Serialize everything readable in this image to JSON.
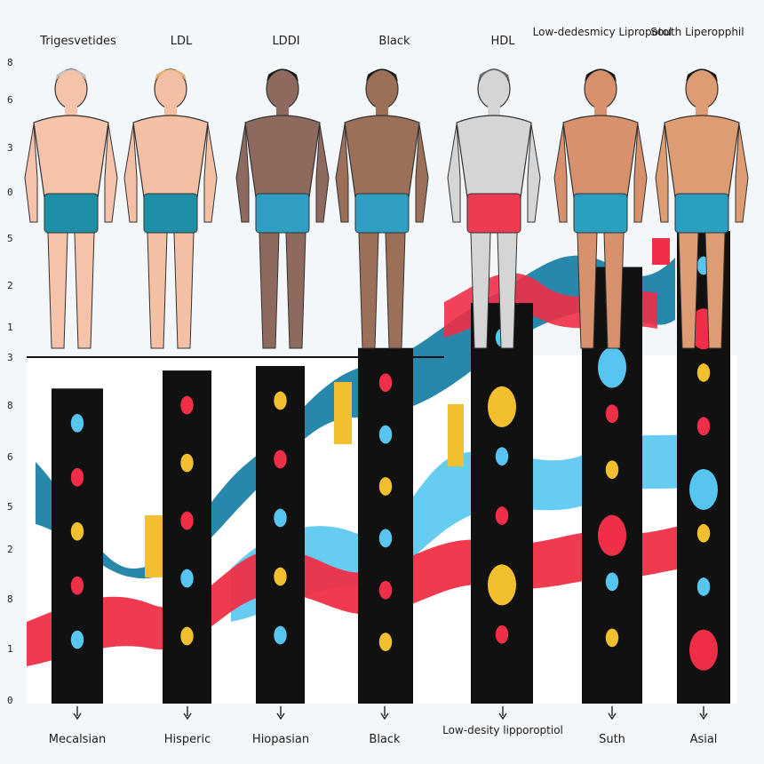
{
  "chart_data": {
    "type": "bar",
    "top_labels": [
      "Trigesvetides",
      "LDL",
      "LDDI",
      "Black",
      "HDL",
      "Low-dedesmicy Lipropotol",
      "South Liperopphil"
    ],
    "bottom_labels": [
      "Mecalsian",
      "Hisperic",
      "Hiopasian",
      "Black",
      "Low-desity lipporoptiol",
      "Suth",
      "Asial"
    ],
    "upper_ticks": [
      "8",
      "6",
      "3",
      "0",
      "5",
      "2",
      "1",
      "3"
    ],
    "lower_ticks": [
      "8",
      "6",
      "5",
      "2",
      "8",
      "1",
      "0"
    ],
    "skin_tones": [
      "#f5c3a9",
      "#f3c0a4",
      "#8e6a5e",
      "#9b6f58",
      "#d5d5d5",
      "#d8916d",
      "#de9c72"
    ],
    "shorts_colors": [
      "#1f8fa8",
      "#1f8fa8",
      "#2fa0c3",
      "#2fa0c3",
      "#ef3b4f",
      "#2b9fc0",
      "#2b9fc0"
    ],
    "hair_colors": [
      "#bfbfbf",
      "#e0b070",
      "#1b1b1b",
      "#1b1b1b",
      "#6a6a6a",
      "#1b1b1b",
      "#1b1b1b"
    ],
    "bars": [
      {
        "category": "Mecalsian",
        "value": 7.0
      },
      {
        "category": "Hisperic",
        "value": 7.4
      },
      {
        "category": "Hiopasian",
        "value": 7.5
      },
      {
        "category": "Black",
        "value": 7.9
      },
      {
        "category": "Low-desity lipporoptiol",
        "value": 8.9
      },
      {
        "category": "Suth",
        "value": 9.7
      },
      {
        "category": "Asial",
        "value": 10.5
      }
    ],
    "ylim": [
      0,
      10.5
    ],
    "colors": {
      "bar": "#111111",
      "red": "#ef2f47",
      "blue": "#56c6f0",
      "teal": "#1c82a6",
      "yellow": "#f2c02f"
    }
  }
}
